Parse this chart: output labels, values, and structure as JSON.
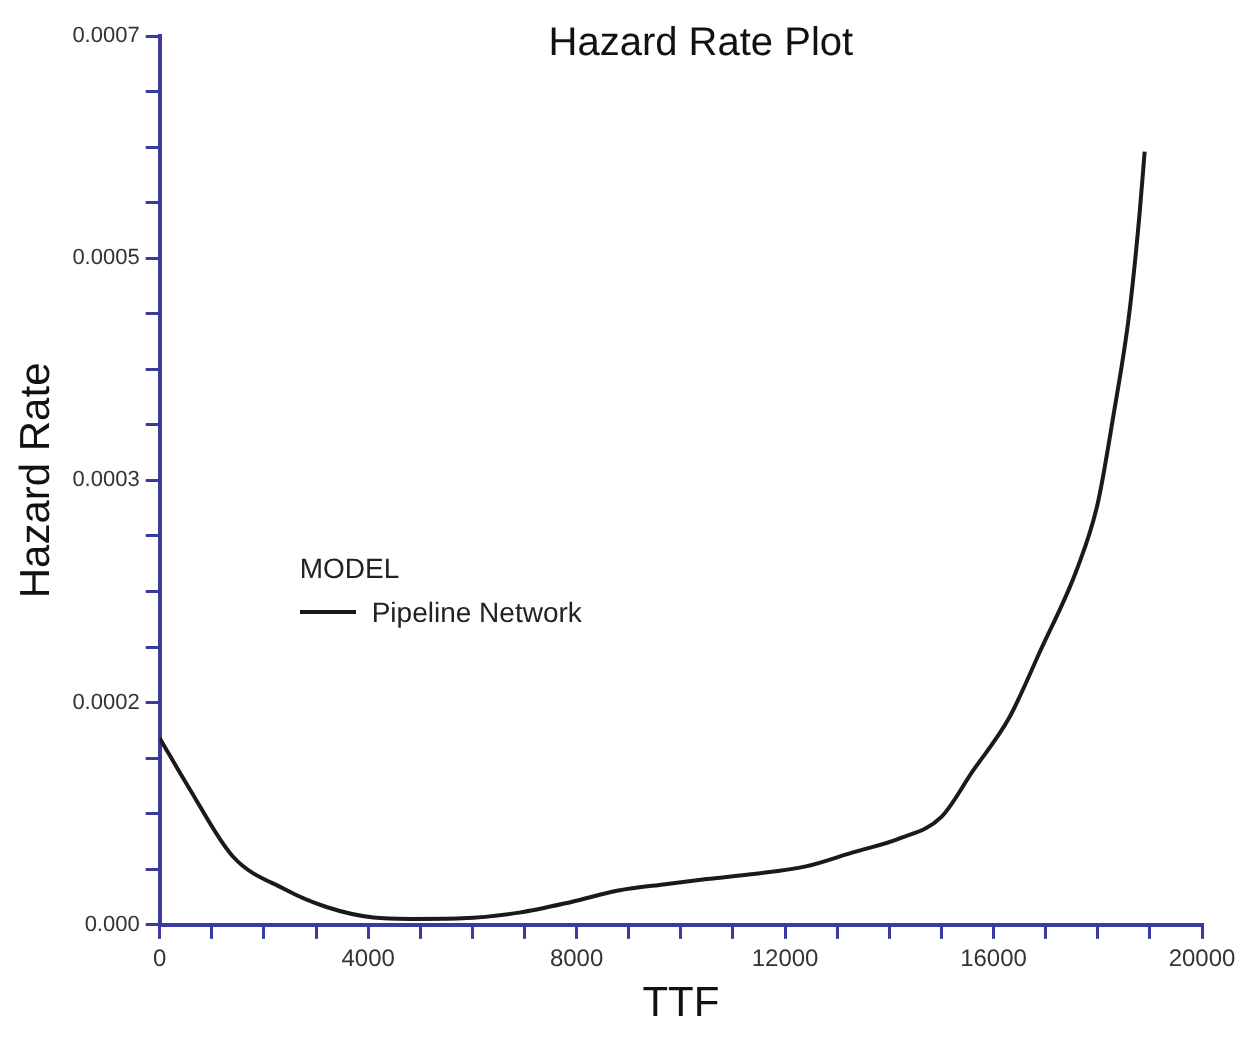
{
  "chart_data": {
    "type": "line",
    "title": "Hazard Rate Plot",
    "xlabel": "TTF",
    "ylabel": "Hazard Rate",
    "legend_title": "MODEL",
    "legend": "left",
    "grid": false,
    "marker": "none",
    "line_style": "solid",
    "xlim": [
      0,
      20000
    ],
    "xticks": [
      0,
      {
        "value": 1000,
        "label": null
      },
      {
        "value": 2000,
        "label": null
      },
      {
        "value": 3000,
        "label": null
      },
      4000,
      {
        "value": 5000,
        "label": null
      },
      {
        "value": 6000,
        "label": null
      },
      {
        "value": 7000,
        "label": null
      },
      8000,
      {
        "value": 9000,
        "label": null
      },
      {
        "value": 10000,
        "label": null
      },
      {
        "value": 11000,
        "label": null
      },
      12000,
      {
        "value": 13000,
        "label": null
      },
      {
        "value": 14000,
        "label": null
      },
      {
        "value": 15000,
        "label": null
      },
      16000,
      {
        "value": 17000,
        "label": null
      },
      {
        "value": 18000,
        "label": null
      },
      {
        "value": 19000,
        "label": null
      },
      20000
    ],
    "ylim": [
      0,
      0.0007
    ],
    "yticks": [
      {
        "value": 0,
        "label": "0.000"
      },
      {
        "value": 4.375e-05,
        "label": null
      },
      {
        "value": 8.75e-05,
        "label": null
      },
      {
        "value": 0.00013125,
        "label": null
      },
      {
        "value": 0.000175,
        "label": "0.0002"
      },
      {
        "value": 0.00021875,
        "label": null
      },
      {
        "value": 0.0002625,
        "label": null
      },
      {
        "value": 0.00030625,
        "label": null
      },
      {
        "value": 0.00035,
        "label": "0.0003"
      },
      {
        "value": 0.00039375,
        "label": null
      },
      {
        "value": 0.0004375,
        "label": null
      },
      {
        "value": 0.00048125,
        "label": null
      },
      {
        "value": 0.000525,
        "label": "0.0005"
      },
      {
        "value": 0.00056875,
        "label": null
      },
      {
        "value": 0.0006125,
        "label": null
      },
      {
        "value": 0.00065625,
        "label": null
      },
      0.0007
    ],
    "x": [
      0,
      560,
      1400,
      2400,
      3200,
      4100,
      4800,
      5800,
      6900,
      7900,
      8800,
      9700,
      10500,
      11400,
      12400,
      13300,
      14200,
      15000,
      15600,
      16300,
      16900,
      17600,
      18000,
      18300,
      18600,
      18800,
      18900
    ],
    "series": [
      {
        "name": "Pipeline Network",
        "color": "#1a1a1a",
        "values": [
          0.000147,
          0.000108,
          5.4e-05,
          2.8e-05,
          1.4e-05,
          5.7e-06,
          4.6e-06,
          5.1e-06,
          9.6e-06,
          1.8e-05,
          2.7e-05,
          3.2e-05,
          3.6e-05,
          4e-05,
          4.6e-05,
          5.7e-05,
          6.8e-05,
          8.5e-05,
          0.000121,
          0.000163,
          0.000216,
          0.00028,
          0.000332,
          0.000401,
          0.00048,
          0.000559,
          0.000609
        ]
      }
    ]
  }
}
